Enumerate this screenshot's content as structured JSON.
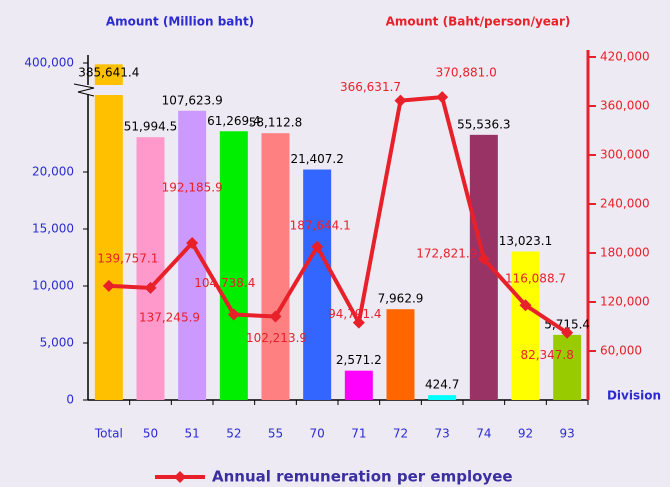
{
  "chart_data": {
    "type": "bar_line",
    "left_axis_title": "Amount (Million baht)",
    "right_axis_title": "Amount (Baht/person/year)",
    "x_label": "Division",
    "categories": [
      "Total",
      "50",
      "51",
      "52",
      "55",
      "70",
      "71",
      "72",
      "73",
      "74",
      "92",
      "93"
    ],
    "series": [
      {
        "name": "Amount (Million baht)",
        "type": "bar",
        "colors": [
          "#ffc000",
          "#ff99cc",
          "#cc99ff",
          "#00ee00",
          "#ff8080",
          "#3366ff",
          "#ff00ff",
          "#ff6600",
          "#00ffff",
          "#993366",
          "#ffff00",
          "#99cc00"
        ],
        "values": [
          385641.4,
          51994.5,
          107623.9,
          61269.4,
          58112.8,
          21407.2,
          2571.2,
          7962.9,
          424.7,
          55536.3,
          13023.1,
          5715.4
        ],
        "value_labels": [
          "385,641.4",
          "51,994.5",
          "107,623.9",
          "61,269.4",
          "58,112.8",
          "21,407.2",
          "2,571.2",
          "7,962.9",
          "424.7",
          "55,536.3",
          "13,023.1",
          "5,715.4"
        ]
      },
      {
        "name": "Annual remuneration per employee",
        "type": "line",
        "axis": "y2",
        "color": "#e8202a",
        "values": [
          139757.1,
          137245.9,
          192185.9,
          104738.4,
          102213.9,
          187644.1,
          94791.4,
          366631.7,
          370881.0,
          172821.9,
          116088.7,
          82347.8
        ],
        "value_labels": [
          "139,757.1",
          "137,245.9",
          "192,185.9",
          "104,738.4",
          "102,213.9",
          "187,644.1",
          "94,791.4",
          "366,631.7",
          "370,881.0",
          "172,821.9",
          "116,088.7",
          "82,347.8"
        ]
      }
    ],
    "ylim": [
      0,
      400000
    ],
    "axis_break": true,
    "yticks": [
      0,
      {
        "value": 5000,
        "label": "5,000"
      },
      {
        "value": 10000,
        "label": "10,000"
      },
      {
        "value": 15000,
        "label": "15,000"
      },
      {
        "value": 20000,
        "label": "20,000"
      },
      {
        "value": 400000,
        "label": "400,000"
      }
    ],
    "y2lim": [
      0,
      420000
    ],
    "y2ticks": [
      {
        "value": 60000,
        "label": "60,000"
      },
      {
        "value": 120000,
        "label": "120,000"
      },
      {
        "value": 180000,
        "label": "180,000"
      },
      {
        "value": 240000,
        "label": "240,000"
      },
      {
        "value": 300000,
        "label": "300,000"
      },
      {
        "value": 360000,
        "label": "360,000"
      },
      {
        "value": 420000,
        "label": "420,000"
      }
    ],
    "legend": "bottom"
  }
}
